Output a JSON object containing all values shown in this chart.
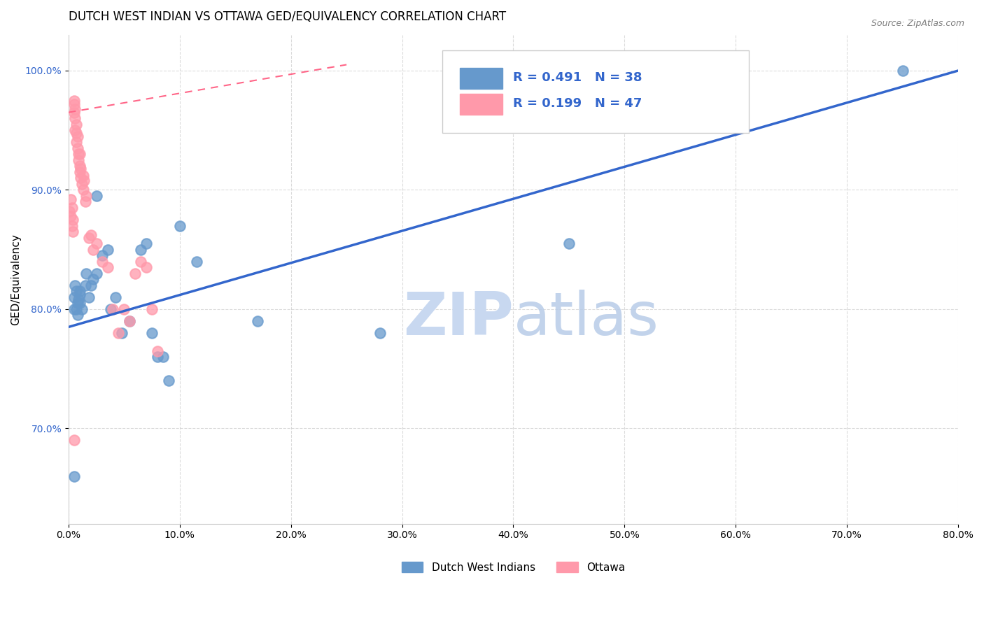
{
  "title": "DUTCH WEST INDIAN VS OTTAWA GED/EQUIVALENCY CORRELATION CHART",
  "source": "Source: ZipAtlas.com",
  "ylabel": "GED/Equivalency",
  "x_ticklabels": [
    "0.0%",
    "10.0%",
    "20.0%",
    "30.0%",
    "40.0%",
    "50.0%",
    "60.0%",
    "70.0%",
    "80.0%"
  ],
  "x_ticks": [
    0,
    0.1,
    0.2,
    0.3,
    0.4,
    0.5,
    0.6,
    0.7,
    0.8
  ],
  "y_ticklabels": [
    "70.0%",
    "80.0%",
    "90.0%",
    "100.0%"
  ],
  "y_ticks": [
    0.7,
    0.8,
    0.9,
    1.0
  ],
  "xlim": [
    0.0,
    0.8
  ],
  "ylim": [
    0.62,
    1.03
  ],
  "blue_label": "Dutch West Indians",
  "pink_label": "Ottawa",
  "blue_R": "R = 0.491",
  "blue_N": "N = 38",
  "pink_R": "R = 0.199",
  "pink_N": "N = 47",
  "blue_color": "#6699CC",
  "pink_color": "#FF99AA",
  "blue_line_color": "#3366CC",
  "pink_line_color": "#FF6688",
  "legend_text_color": "#3366CC",
  "watermark_zip_color": "#C8D8F0",
  "watermark_atlas_color": "#B8CCE8",
  "blue_scatter_x": [
    0.005,
    0.005,
    0.006,
    0.007,
    0.007,
    0.008,
    0.008,
    0.009,
    0.01,
    0.01,
    0.01,
    0.012,
    0.015,
    0.016,
    0.018,
    0.02,
    0.022,
    0.025,
    0.025,
    0.03,
    0.035,
    0.038,
    0.042,
    0.048,
    0.055,
    0.065,
    0.07,
    0.075,
    0.08,
    0.085,
    0.09,
    0.1,
    0.115,
    0.17,
    0.28,
    0.45,
    0.75,
    0.005
  ],
  "blue_scatter_y": [
    0.8,
    0.81,
    0.82,
    0.815,
    0.8,
    0.805,
    0.795,
    0.808,
    0.812,
    0.805,
    0.815,
    0.8,
    0.82,
    0.83,
    0.81,
    0.82,
    0.825,
    0.83,
    0.895,
    0.845,
    0.85,
    0.8,
    0.81,
    0.78,
    0.79,
    0.85,
    0.855,
    0.78,
    0.76,
    0.76,
    0.74,
    0.87,
    0.84,
    0.79,
    0.78,
    0.855,
    1.0,
    0.66
  ],
  "pink_scatter_x": [
    0.001,
    0.002,
    0.002,
    0.003,
    0.003,
    0.004,
    0.004,
    0.005,
    0.005,
    0.005,
    0.006,
    0.006,
    0.006,
    0.007,
    0.007,
    0.007,
    0.008,
    0.008,
    0.009,
    0.009,
    0.01,
    0.01,
    0.01,
    0.011,
    0.011,
    0.012,
    0.013,
    0.013,
    0.014,
    0.015,
    0.016,
    0.018,
    0.02,
    0.022,
    0.025,
    0.03,
    0.035,
    0.04,
    0.045,
    0.05,
    0.055,
    0.06,
    0.065,
    0.07,
    0.075,
    0.08,
    0.005
  ],
  "pink_scatter_y": [
    0.882,
    0.878,
    0.892,
    0.87,
    0.885,
    0.865,
    0.875,
    0.965,
    0.972,
    0.975,
    0.96,
    0.95,
    0.968,
    0.94,
    0.948,
    0.955,
    0.935,
    0.945,
    0.925,
    0.93,
    0.92,
    0.93,
    0.915,
    0.91,
    0.918,
    0.905,
    0.912,
    0.9,
    0.908,
    0.89,
    0.895,
    0.86,
    0.862,
    0.85,
    0.855,
    0.84,
    0.835,
    0.8,
    0.78,
    0.8,
    0.79,
    0.83,
    0.84,
    0.835,
    0.8,
    0.765,
    0.69
  ],
  "blue_line_x": [
    0.0,
    0.8
  ],
  "blue_line_y": [
    0.785,
    1.0
  ],
  "pink_line_x": [
    0.0,
    0.25
  ],
  "pink_line_y": [
    0.965,
    1.005
  ],
  "title_fontsize": 12,
  "axis_label_fontsize": 11,
  "tick_fontsize": 10,
  "legend_fontsize": 13
}
